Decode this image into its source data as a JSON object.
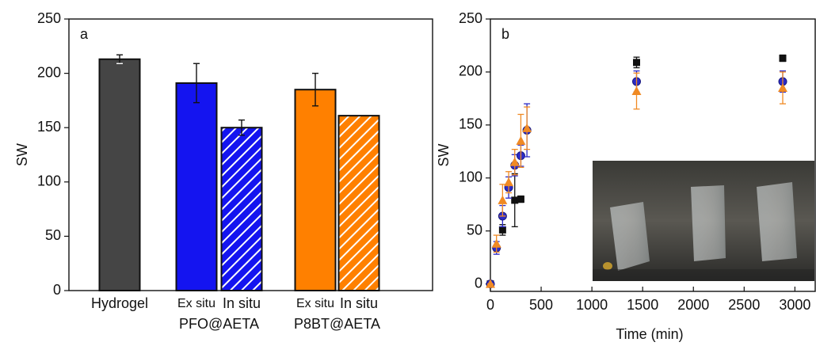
{
  "chart_data": [
    {
      "type": "bar",
      "panel_label": "a",
      "ylabel": "SW",
      "categories": [
        "Hydrogel",
        "Ex situ",
        "In situ",
        "Ex situ",
        "In situ"
      ],
      "category_groups": [
        null,
        "PFO@AETA",
        "PFO@AETA",
        "P8BT@AETA",
        "P8BT@AETA"
      ],
      "values": [
        213,
        191,
        150,
        185,
        161
      ],
      "errors": [
        4,
        18,
        7,
        15,
        null
      ],
      "colors": [
        "#454545",
        "#1414f0",
        "#1414f0",
        "#ff8000",
        "#ff8000"
      ],
      "hatch": [
        false,
        false,
        true,
        false,
        true
      ],
      "ylim": [
        0,
        250
      ],
      "yticks": [
        0,
        50,
        100,
        150,
        200,
        250
      ]
    },
    {
      "type": "scatter",
      "panel_label": "b",
      "ylabel": "SW",
      "xlabel": "Time (min)",
      "series": [
        {
          "color": "#111111",
          "marker": "square",
          "x": [
            0,
            120,
            240,
            300,
            1440,
            2880
          ],
          "values": [
            0,
            51,
            79,
            80,
            209,
            213
          ],
          "errors": [
            0,
            5,
            25,
            3,
            5,
            3
          ]
        },
        {
          "color": "#2b2bc8",
          "marker": "circle",
          "x": [
            0,
            60,
            120,
            180,
            240,
            300,
            360,
            1440,
            2880
          ],
          "values": [
            0,
            34,
            64,
            91,
            112,
            121,
            145,
            191,
            191
          ],
          "errors": [
            0,
            6,
            10,
            10,
            10,
            10,
            25,
            10,
            10
          ]
        },
        {
          "color": "#f08a24",
          "marker": "triangle",
          "x": [
            0,
            60,
            120,
            180,
            240,
            300,
            360,
            1440,
            2880
          ],
          "values": [
            0,
            38,
            79,
            96,
            115,
            135,
            147,
            182,
            185
          ],
          "errors": [
            0,
            8,
            15,
            10,
            12,
            25,
            20,
            17,
            15
          ]
        }
      ],
      "xlim": [
        0,
        3200
      ],
      "xticks": [
        0,
        500,
        1000,
        1500,
        2000,
        2500,
        3000
      ],
      "ylim": [
        -7,
        250
      ],
      "yticks": [
        0,
        50,
        100,
        150,
        200,
        250
      ]
    }
  ]
}
